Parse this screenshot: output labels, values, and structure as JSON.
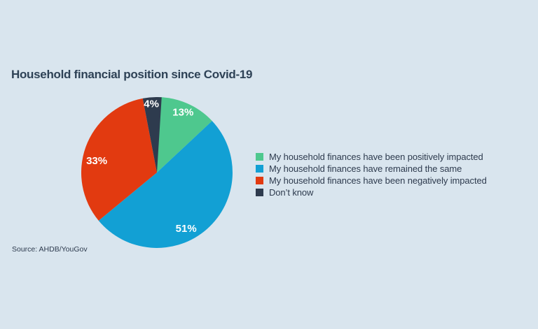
{
  "page": {
    "background_color": "#d9e5ee"
  },
  "chart_data": {
    "type": "pie",
    "title": "Household financial position since Covid-19",
    "source": "Source: AHDB/YouGov",
    "legend_position": "right",
    "start_angle_deg": 0,
    "direction": "clockwise",
    "label_text_color": "#ffffff",
    "title_color": "#2e4256",
    "legend_text_color": "#2e3b4e",
    "slices": [
      {
        "name": "My household finances have been positively impacted",
        "value": 13,
        "label": "13%",
        "color": "#4ec88e"
      },
      {
        "name": "My household finances have remained the same",
        "value": 51,
        "label": "51%",
        "color": "#12a0d4"
      },
      {
        "name": "My household finances have been negatively impacted",
        "value": 33,
        "label": "33%",
        "color": "#e23a10"
      },
      {
        "name": "Don’t know",
        "value": 4,
        "label": "4%",
        "color": "#2e3b4e"
      }
    ]
  }
}
